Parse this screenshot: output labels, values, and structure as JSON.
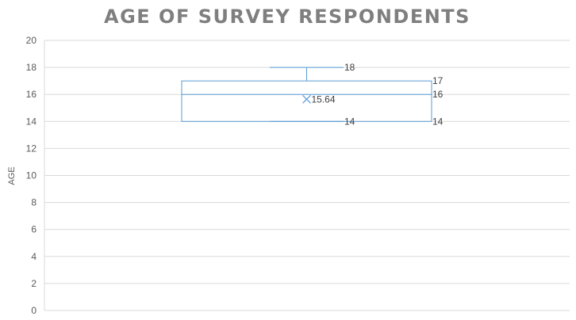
{
  "chart_data": {
    "type": "box",
    "title": "AGE OF SURVEY RESPONDENTS",
    "xlabel": "",
    "ylabel": "AGE",
    "ylim": [
      0,
      20
    ],
    "yticks": [
      0,
      2,
      4,
      6,
      8,
      10,
      12,
      14,
      16,
      18,
      20
    ],
    "grid": true,
    "series": [
      {
        "min": 14,
        "q1": 14,
        "median": 16,
        "q3": 17,
        "max": 18,
        "mean": 15.64
      }
    ],
    "data_labels": [
      {
        "text": "18",
        "value": 18,
        "anchor": "whisker-right"
      },
      {
        "text": "17",
        "value": 17,
        "anchor": "box-right"
      },
      {
        "text": "16",
        "value": 16,
        "anchor": "box-right"
      },
      {
        "text": "15.64",
        "value": 15.64,
        "anchor": "mean-marker"
      },
      {
        "text": "14",
        "value": 14,
        "anchor": "whisker-right"
      },
      {
        "text": "14",
        "value": 14,
        "anchor": "box-right"
      }
    ],
    "colors": {
      "box": "#5b9bd5",
      "title": "#7f7f7f",
      "grid": "#d9d9d9",
      "axis_text": "#595959"
    }
  }
}
